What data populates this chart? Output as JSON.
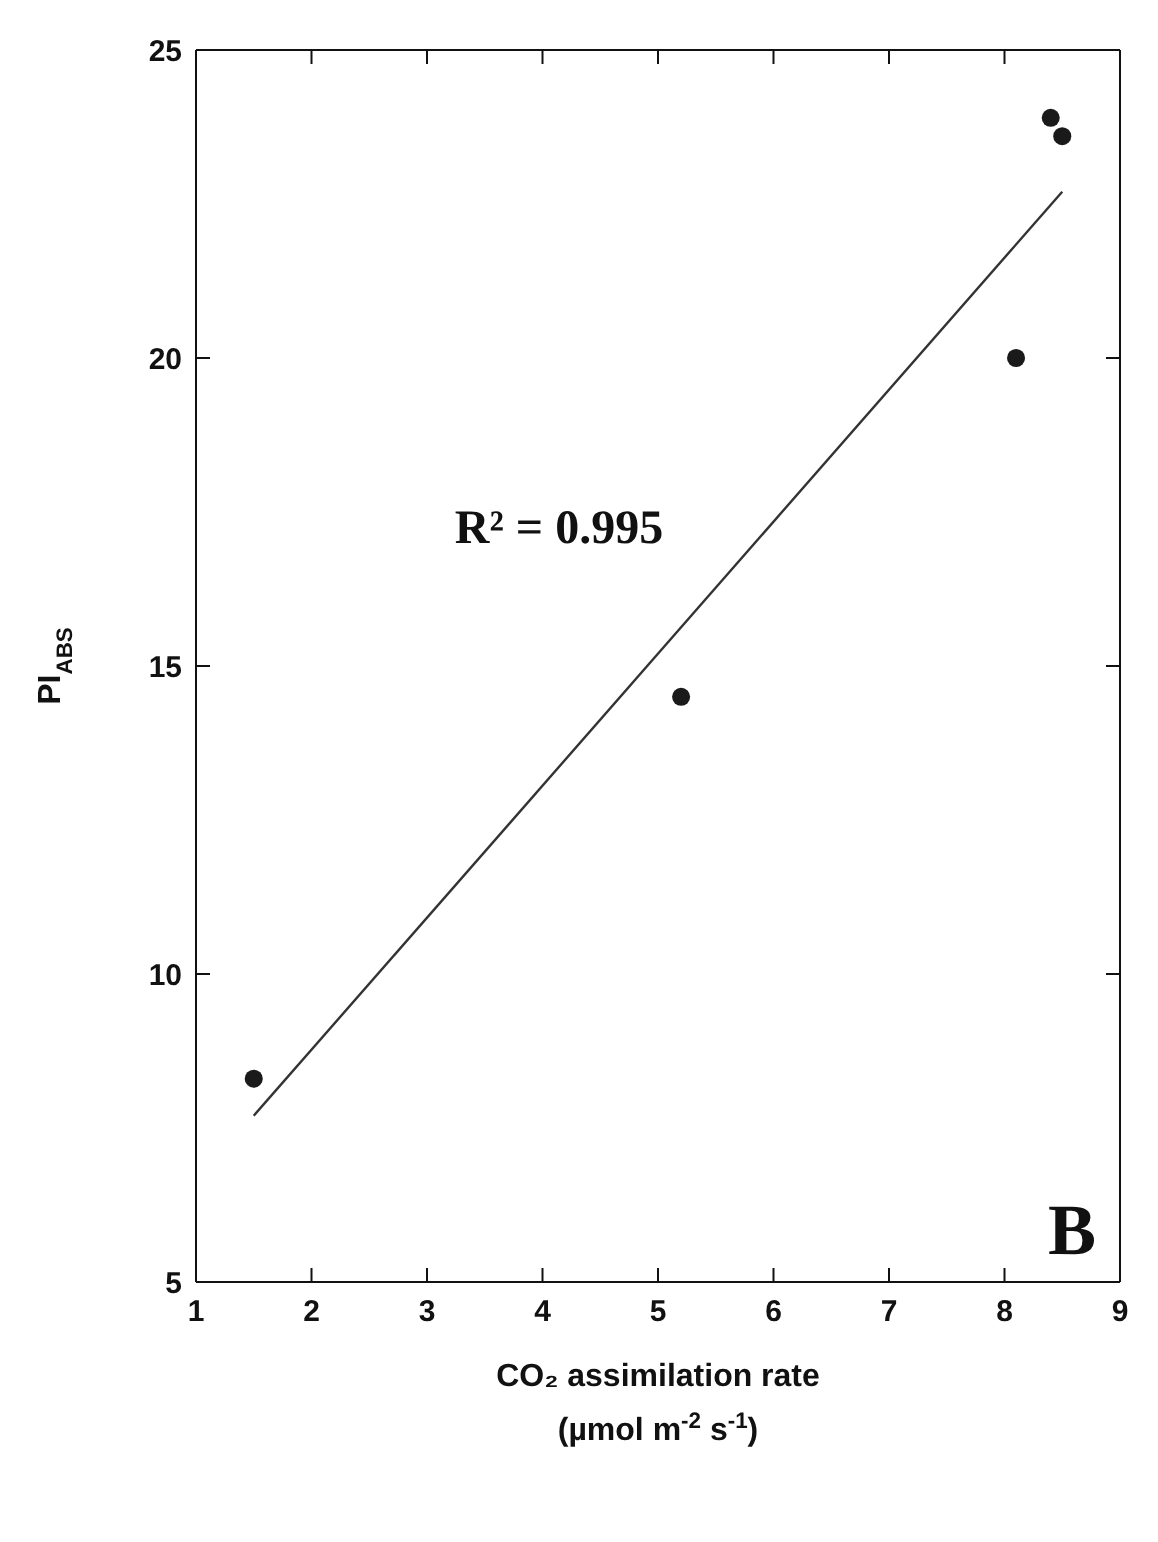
{
  "chart_data": {
    "type": "scatter",
    "xlabel": "CO₂ assimilation rate\n(µmol m$^{-2}$ s$^{-1}$)",
    "ylabel": "PI$_{ABS}$",
    "x": [
      1.5,
      5.2,
      8.1,
      8.4,
      8.5
    ],
    "series": [
      {
        "color": "#1a1a1a",
        "marker": "circle",
        "values": [
          8.3,
          14.5,
          20.0,
          23.9,
          23.6
        ]
      },
      {
        "type": "line",
        "color": "#333333",
        "marker": "none",
        "line_style": "solid",
        "x": [
          1.5,
          8.5
        ],
        "values": [
          7.7,
          22.7
        ]
      }
    ],
    "xlim": [
      1,
      9
    ],
    "xticks": [
      1,
      2,
      3,
      4,
      5,
      6,
      7,
      8,
      9
    ],
    "ylim": [
      5,
      25
    ],
    "yticks": [
      5,
      10,
      15,
      20,
      25
    ],
    "annotations": [
      "R² = 0.995",
      "B"
    ]
  }
}
